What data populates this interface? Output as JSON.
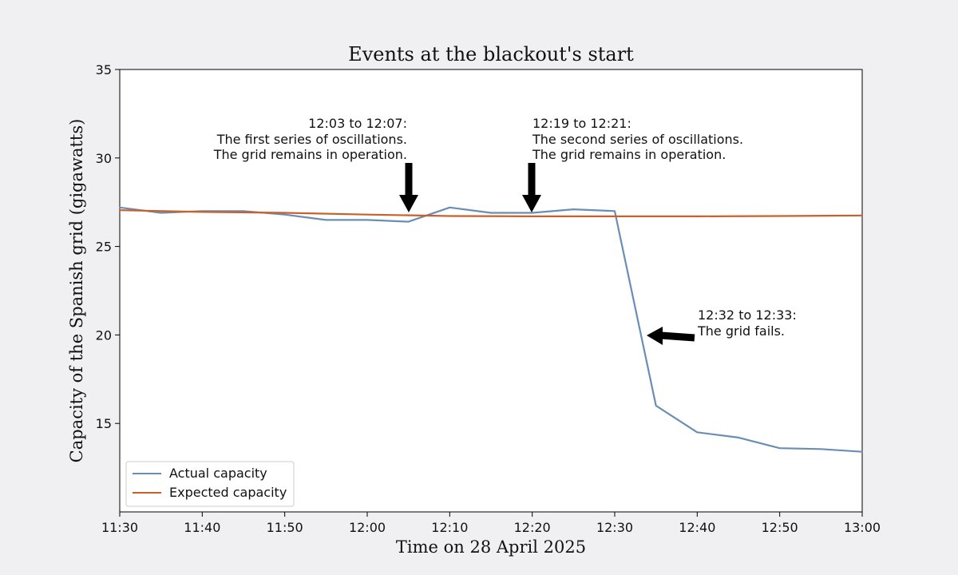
{
  "chart_data": {
    "type": "line",
    "title": "Events at the blackout's start",
    "xlabel": "Time on 28 April 2025",
    "ylabel": "Capacity of the Spanish grid (gigawatts)",
    "xlim": [
      "11:30",
      "13:00"
    ],
    "ylim": [
      10,
      35
    ],
    "xticks": [
      "11:30",
      "11:40",
      "11:50",
      "12:00",
      "12:10",
      "12:20",
      "12:30",
      "12:40",
      "12:50",
      "13:00"
    ],
    "yticks": [
      15,
      20,
      25,
      30,
      35
    ],
    "grid": false,
    "legend": "lower-left",
    "series": [
      {
        "name": "Actual capacity",
        "color": "#6a8db5",
        "x": [
          "11:30",
          "11:35",
          "11:40",
          "11:45",
          "11:50",
          "11:55",
          "12:00",
          "12:05",
          "12:10",
          "12:15",
          "12:20",
          "12:25",
          "12:30",
          "12:35",
          "12:40",
          "12:45",
          "12:50",
          "12:55",
          "13:00"
        ],
        "y": [
          27.2,
          26.9,
          27.0,
          27.0,
          26.8,
          26.5,
          26.5,
          26.4,
          27.2,
          26.9,
          26.9,
          27.1,
          27.0,
          16.0,
          14.5,
          14.2,
          13.6,
          13.55,
          13.4
        ]
      },
      {
        "name": "Expected capacity",
        "color": "#c9602c",
        "x": [
          "11:30",
          "11:40",
          "11:50",
          "12:00",
          "12:10",
          "12:20",
          "12:30",
          "12:40",
          "12:50",
          "13:00"
        ],
        "y": [
          27.05,
          26.95,
          26.9,
          26.8,
          26.72,
          26.7,
          26.7,
          26.7,
          26.72,
          26.75
        ]
      }
    ],
    "annotations": [
      {
        "lines": [
          "12:03 to 12:07:",
          "The first series of oscillations.",
          "The grid remains in operation."
        ],
        "arrow_target": "12:05",
        "arrow_direction": "down"
      },
      {
        "lines": [
          "12:19 to 12:21:",
          "The second series of oscillations.",
          "The grid remains in operation."
        ],
        "arrow_target": "12:20",
        "arrow_direction": "down"
      },
      {
        "lines": [
          "12:32 to 12:33:",
          "The grid fails."
        ],
        "arrow_target": "12:33",
        "arrow_direction": "left"
      }
    ]
  }
}
